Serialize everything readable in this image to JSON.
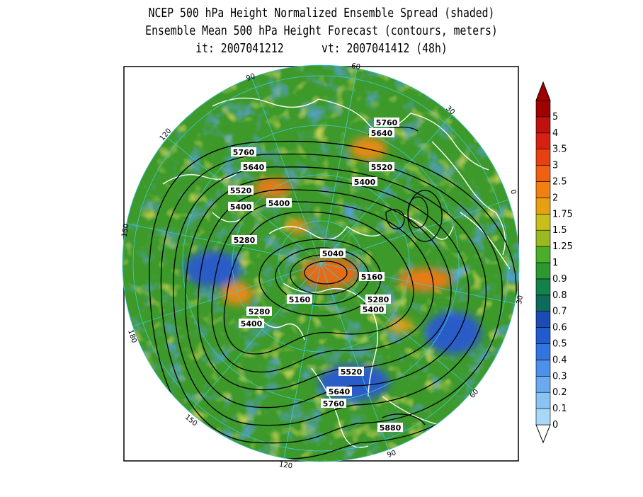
{
  "title": {
    "line1": "NCEP 500 hPa Height Normalized Ensemble Spread (shaded)",
    "line2": "Ensemble Mean 500 hPa Height Forecast (contours, meters)",
    "line3": "it: 2007041212      vt: 2007041412 (48h)"
  },
  "colorbar": {
    "labels": [
      "0",
      "0.1",
      "0.2",
      "0.3",
      "0.4",
      "0.5",
      "0.6",
      "0.7",
      "0.8",
      "0.9",
      "1",
      "1.25",
      "1.5",
      "1.75",
      "2",
      "2.5",
      "3",
      "3.5",
      "4",
      "5"
    ],
    "colors": [
      "#a8d8f8",
      "#88c4f4",
      "#6aaaf0",
      "#4c90ea",
      "#3274e0",
      "#1e5cd0",
      "#1a4cb4",
      "#0e6a5a",
      "#14804a",
      "#2a9a30",
      "#4aae28",
      "#9ab820",
      "#c8c018",
      "#e8a010",
      "#f08010",
      "#f06010",
      "#e84010",
      "#d82010",
      "#c01010",
      "#a00000"
    ]
  },
  "longitude_labels": [
    "60",
    "30",
    "0",
    "30",
    "60",
    "90",
    "120",
    "150",
    "180",
    "150",
    "120",
    "90"
  ],
  "contour_labels": [
    "5760",
    "5640",
    "5520",
    "5400",
    "5760",
    "5640",
    "5520",
    "5400",
    "5400",
    "5280",
    "5040",
    "5160",
    "5160",
    "5280",
    "5400",
    "5280",
    "5400",
    "5520",
    "5640",
    "5760",
    "5880"
  ],
  "colors": {
    "contour": "#000000",
    "coastline": "#ffffff",
    "grid": "#40c8d8",
    "base_green": "#3d9a2a",
    "olive": "#a8a820",
    "blue": "#2a5cc8",
    "orange": "#e88018"
  }
}
